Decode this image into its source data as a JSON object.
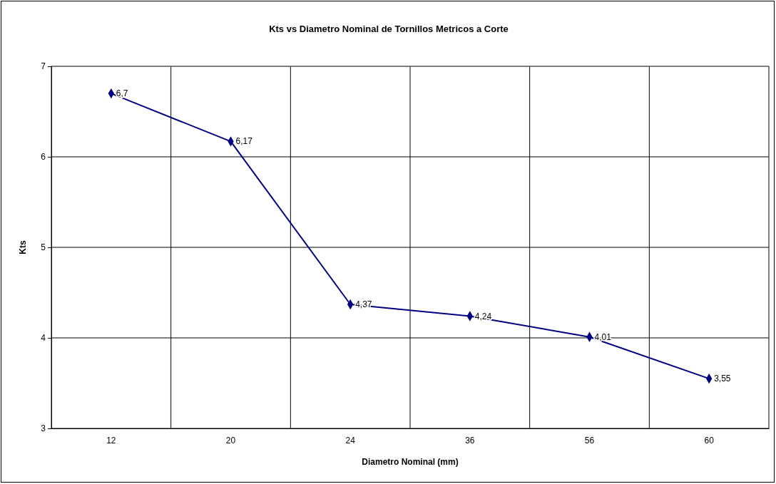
{
  "chart_data": {
    "type": "line",
    "title": "Kts vs Diametro Nominal de Tornillos Metricos a Corte",
    "xlabel": "Diametro Nominal (mm)",
    "ylabel": "Kts",
    "categories": [
      "12",
      "20",
      "24",
      "36",
      "56",
      "60"
    ],
    "series": [
      {
        "color": "#000080",
        "values": [
          6.7,
          6.17,
          4.37,
          4.24,
          4.01,
          3.55
        ],
        "value_labels": [
          "6,7",
          "6,17",
          "4,37",
          "4,24",
          "4,01",
          "3,55"
        ]
      }
    ],
    "ylim": [
      3,
      7
    ],
    "yticks": [
      3,
      4,
      5,
      6,
      7
    ],
    "grid": true,
    "marker": "diamond",
    "line_style": "solid"
  }
}
